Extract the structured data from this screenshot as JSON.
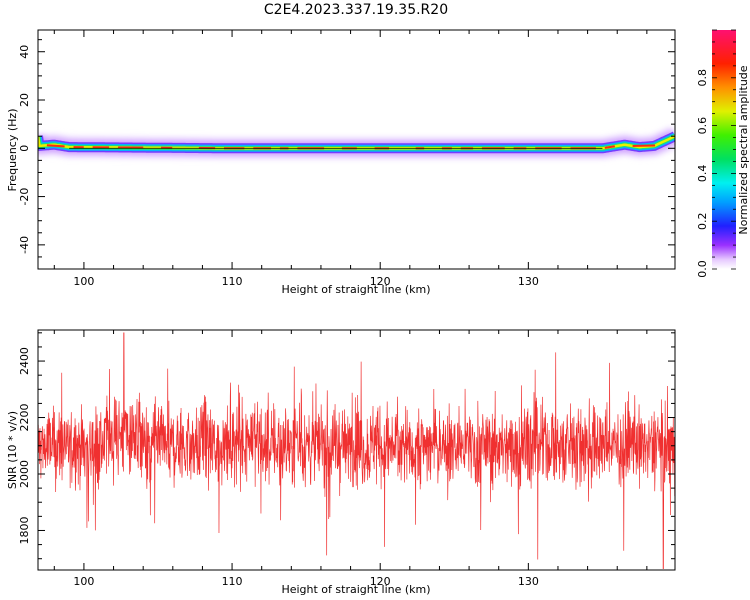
{
  "figure": {
    "title": "C2E4.2023.337.19.35.R20"
  },
  "chart_data": [
    {
      "type": "heatmap",
      "xlabel": "Height of straight line (km)",
      "ylabel": "Frequency (Hz)",
      "xlim": [
        96.9,
        139.9
      ],
      "ylim": [
        -50,
        49
      ],
      "x_ticks": [
        "100",
        "110",
        "120",
        "130"
      ],
      "y_ticks": [
        "40",
        "20",
        "0",
        "-20",
        "-40"
      ],
      "grid": false,
      "signal_band": {
        "description_points": [
          {
            "x": 97.0,
            "y": 1
          },
          {
            "x": 98.0,
            "y": 1.5
          },
          {
            "x": 99.0,
            "y": 0.5
          },
          {
            "x": 110.0,
            "y": 0
          },
          {
            "x": 120.0,
            "y": 0
          },
          {
            "x": 130.0,
            "y": 0
          },
          {
            "x": 135.0,
            "y": 0
          },
          {
            "x": 136.5,
            "y": 1.5
          },
          {
            "x": 137.5,
            "y": 0.5
          },
          {
            "x": 138.5,
            "y": 1.0
          },
          {
            "x": 139.9,
            "y": 5.0
          }
        ]
      },
      "colorbar": {
        "label": "Normalized spectral amplitude",
        "range": [
          0,
          1
        ],
        "ticks": [
          "0.0",
          "0.2",
          "0.4",
          "0.6",
          "0.8"
        ]
      }
    },
    {
      "type": "line",
      "xlabel": "Height of straight line (km)",
      "ylabel": "SNR (10 * v/v)",
      "xlim": [
        96.9,
        139.9
      ],
      "ylim": [
        1660,
        2510
      ],
      "x_ticks": [
        "100",
        "110",
        "120",
        "130"
      ],
      "y_ticks": [
        "2400",
        "2200",
        "2000",
        "1800"
      ],
      "grid": false,
      "series_color": "#f03030",
      "series_stats": {
        "mean": 2100,
        "std": 80,
        "min": 1665,
        "max": 2500
      }
    }
  ]
}
